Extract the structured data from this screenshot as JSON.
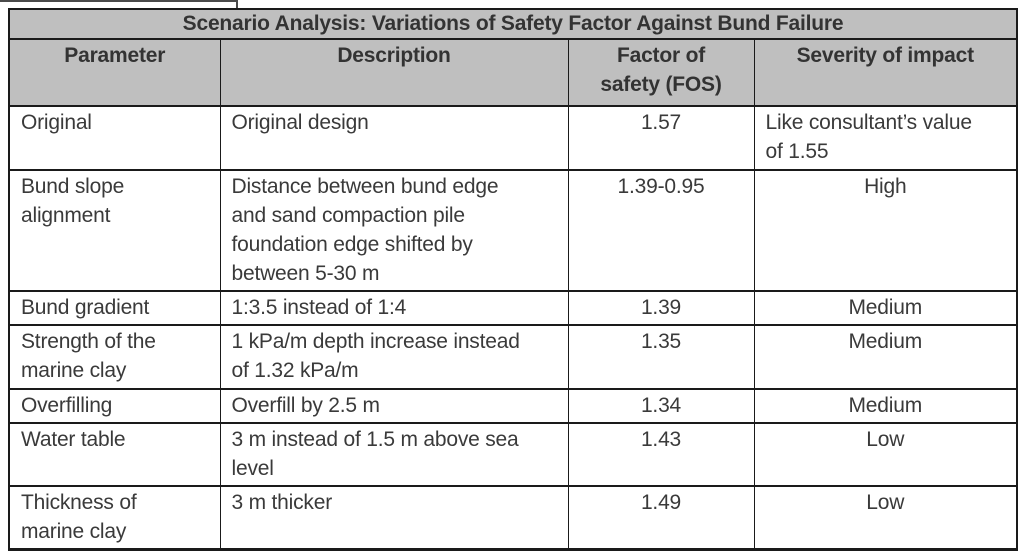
{
  "table": {
    "title": "Scenario Analysis: Variations of Safety Factor Against Bund Failure",
    "columns": [
      "Parameter",
      "Description",
      "Factor of\nsafety (FOS)",
      "Severity of impact"
    ],
    "rows": [
      {
        "parameter": "Original",
        "description": "Original design",
        "fos": "1.57",
        "severity": "Like consultant’s value\nof 1.55",
        "severity_align": "left"
      },
      {
        "parameter": "Bund slope\nalignment",
        "description": "Distance between bund edge\nand sand compaction pile\nfoundation edge shifted by\nbetween 5-30 m",
        "fos": "1.39-0.95",
        "severity": "High",
        "severity_align": "center"
      },
      {
        "parameter": "Bund gradient",
        "description": "1:3.5 instead of 1:4",
        "fos": "1.39",
        "severity": "Medium",
        "severity_align": "center"
      },
      {
        "parameter": "Strength of the\nmarine clay",
        "description": "1 kPa/m depth increase instead\nof 1.32 kPa/m",
        "fos": "1.35",
        "severity": "Medium",
        "severity_align": "center"
      },
      {
        "parameter": "Overfilling",
        "description": "Overfill by 2.5 m",
        "fos": "1.34",
        "severity": "Medium",
        "severity_align": "center"
      },
      {
        "parameter": "Water table",
        "description": "3 m instead of 1.5 m above sea\nlevel",
        "fos": "1.43",
        "severity": "Low",
        "severity_align": "center"
      },
      {
        "parameter": "Thickness of\nmarine clay",
        "description": "3 m thicker",
        "fos": "1.49",
        "severity": "Low",
        "severity_align": "center"
      }
    ],
    "colors": {
      "header_bg": "#bfbfbf",
      "text": "#3a3a3a",
      "border": "#1a1a1a"
    }
  }
}
